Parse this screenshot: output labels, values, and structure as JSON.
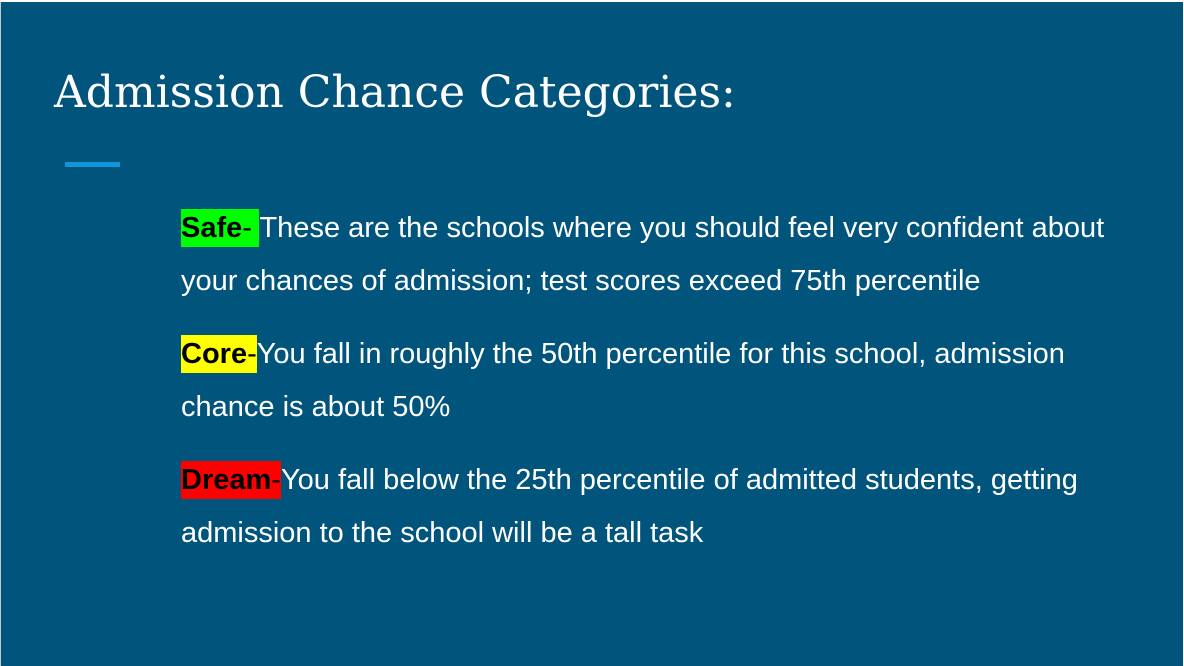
{
  "slide": {
    "title": "Admission Chance Categories:",
    "items": [
      {
        "label": "Safe",
        "separator": "- ",
        "text": "These are the schools where you should feel very confident about your chances of admission; test scores exceed 75th percentile"
      },
      {
        "label": "Core",
        "separator": "-",
        "text": "You fall in roughly the 50th percentile for this school, admission chance is about 50%"
      },
      {
        "label": "Dream",
        "separator": "-",
        "text": "You fall below the 25th percentile of admitted students, getting admission to the school will be a tall task"
      }
    ]
  },
  "colors": {
    "background": "#01547c",
    "accent": "#1195d9",
    "safe": "#00ff00",
    "core": "#ffff00",
    "dream": "#ff0000"
  }
}
